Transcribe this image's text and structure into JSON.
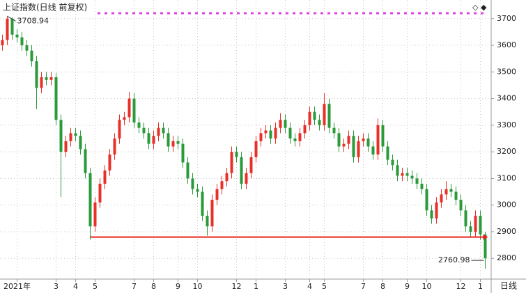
{
  "chart_data": {
    "type": "candlestick",
    "title": "上证指数(日线 前复权)",
    "period": "日线",
    "categories": [
      null,
      null,
      null,
      "2021年",
      null,
      null,
      null,
      null,
      null,
      null,
      null,
      "3",
      null,
      null,
      null,
      "4",
      null,
      null,
      null,
      "5",
      null,
      null,
      null,
      null,
      null,
      null,
      null,
      "7",
      null,
      null,
      null,
      "8",
      null,
      null,
      null,
      null,
      "9",
      null,
      null,
      null,
      "10",
      null,
      null,
      null,
      null,
      null,
      null,
      null,
      "12",
      null,
      null,
      null,
      "1",
      null,
      null,
      null,
      null,
      null,
      "3",
      null,
      null,
      null,
      null,
      "4",
      null,
      null,
      "5",
      null,
      null,
      null,
      null,
      null,
      null,
      null,
      "7",
      null,
      null,
      null,
      "8",
      null,
      null,
      null,
      null,
      "9",
      null,
      null,
      null,
      "10",
      null,
      null,
      null,
      null,
      null,
      null,
      "12",
      null,
      null,
      null,
      "1",
      null
    ],
    "open": [
      3600,
      3620,
      3700,
      3640,
      3630,
      3600,
      3580,
      3540,
      3440,
      3480,
      3470,
      3480,
      3320,
      3200,
      3240,
      3270,
      3260,
      3210,
      3120,
      2920,
      3010,
      3080,
      3130,
      3190,
      3250,
      3320,
      3330,
      3400,
      3310,
      3290,
      3270,
      3230,
      3260,
      3290,
      3270,
      3220,
      3240,
      3230,
      3160,
      3100,
      3060,
      3050,
      2960,
      2920,
      3020,
      3060,
      3090,
      3120,
      3200,
      3180,
      3080,
      3120,
      3180,
      3240,
      3270,
      3280,
      3250,
      3290,
      3320,
      3290,
      3250,
      3240,
      3270,
      3300,
      3350,
      3320,
      3300,
      3380,
      3290,
      3270,
      3220,
      3230,
      3260,
      3180,
      3240,
      3250,
      3220,
      3190,
      3300,
      3220,
      3170,
      3150,
      3110,
      3120,
      3110,
      3100,
      3080,
      3060,
      2980,
      2950,
      3010,
      3040,
      3060,
      3050,
      3020,
      2980,
      2920,
      2900,
      2960,
      2890
    ],
    "high": [
      3640,
      3708.94,
      3705,
      3660,
      3650,
      3620,
      3600,
      3560,
      3500,
      3500,
      3500,
      3495,
      3340,
      3260,
      3290,
      3290,
      3280,
      3230,
      3140,
      3030,
      3100,
      3150,
      3210,
      3270,
      3340,
      3350,
      3425,
      3420,
      3330,
      3310,
      3290,
      3280,
      3310,
      3310,
      3290,
      3260,
      3260,
      3250,
      3180,
      3120,
      3080,
      3070,
      2980,
      3040,
      3080,
      3110,
      3140,
      3220,
      3220,
      3200,
      3140,
      3200,
      3260,
      3290,
      3300,
      3300,
      3310,
      3345,
      3340,
      3310,
      3270,
      3290,
      3320,
      3370,
      3370,
      3340,
      3420,
      3400,
      3310,
      3290,
      3250,
      3280,
      3280,
      3260,
      3270,
      3270,
      3240,
      3325,
      3320,
      3240,
      3190,
      3170,
      3140,
      3140,
      3130,
      3120,
      3100,
      3080,
      3000,
      3030,
      3060,
      3090,
      3080,
      3070,
      3040,
      3000,
      2940,
      2980,
      2980,
      2900
    ],
    "low": [
      3580,
      3600,
      3620,
      3610,
      3580,
      3560,
      3520,
      3360,
      3420,
      3450,
      3450,
      3300,
      3030,
      3180,
      3220,
      3240,
      3190,
      3100,
      2870,
      2900,
      2990,
      3060,
      3110,
      3170,
      3230,
      3300,
      3310,
      3290,
      3270,
      3250,
      3210,
      3210,
      3240,
      3250,
      3200,
      3200,
      3210,
      3140,
      3080,
      3040,
      3030,
      2940,
      2885,
      2900,
      3000,
      3040,
      3070,
      3100,
      3160,
      3060,
      3060,
      3100,
      3160,
      3220,
      3250,
      3230,
      3230,
      3270,
      3270,
      3230,
      3220,
      3220,
      3250,
      3280,
      3300,
      3280,
      3280,
      3270,
      3250,
      3200,
      3200,
      3210,
      3160,
      3160,
      3220,
      3200,
      3170,
      3170,
      3200,
      3150,
      3130,
      3090,
      3090,
      3090,
      3080,
      3060,
      3040,
      2960,
      2930,
      2930,
      2990,
      3020,
      3030,
      3000,
      2960,
      2900,
      2880,
      2880,
      2870,
      2760.98
    ],
    "close": [
      3620,
      3700,
      3640,
      3630,
      3600,
      3580,
      3540,
      3440,
      3480,
      3470,
      3480,
      3320,
      3200,
      3240,
      3270,
      3260,
      3210,
      3120,
      2920,
      3010,
      3080,
      3130,
      3190,
      3250,
      3320,
      3330,
      3400,
      3310,
      3290,
      3270,
      3230,
      3260,
      3290,
      3270,
      3220,
      3240,
      3230,
      3160,
      3100,
      3060,
      3050,
      2960,
      2920,
      3020,
      3060,
      3090,
      3120,
      3200,
      3180,
      3080,
      3120,
      3180,
      3240,
      3270,
      3280,
      3250,
      3290,
      3320,
      3290,
      3250,
      3240,
      3270,
      3300,
      3350,
      3320,
      3300,
      3380,
      3290,
      3270,
      3220,
      3230,
      3260,
      3180,
      3240,
      3250,
      3220,
      3190,
      3300,
      3220,
      3170,
      3150,
      3110,
      3120,
      3110,
      3100,
      3080,
      3060,
      2980,
      2950,
      3010,
      3040,
      3060,
      3050,
      3020,
      2980,
      2920,
      2900,
      2960,
      2890,
      2800
    ],
    "up_color": "#e8302a",
    "down_color": "#2a9a3a",
    "ylim": [
      2730,
      3770
    ],
    "yticks": [
      2800,
      2900,
      3000,
      3100,
      3200,
      3300,
      3400,
      3500,
      3600,
      3700
    ],
    "grid": true,
    "support_line": {
      "y": 2880,
      "x": [
        18,
        99
      ],
      "color": "#e8201a"
    }
  }
}
